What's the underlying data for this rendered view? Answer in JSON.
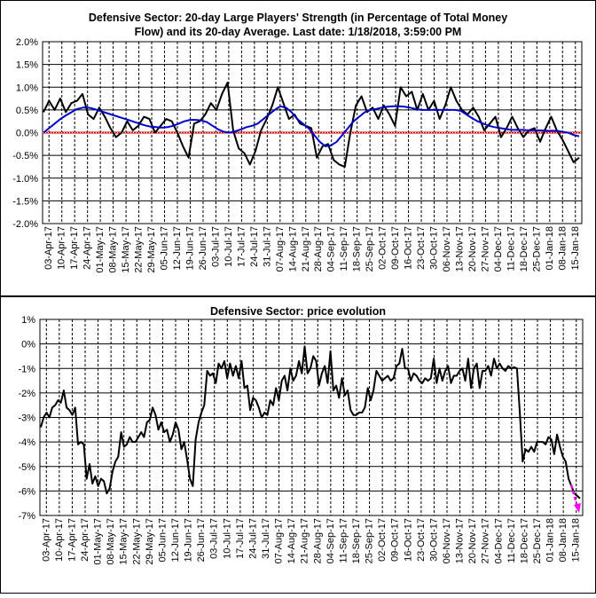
{
  "chart_data": [
    {
      "type": "line",
      "title": "Defensive Sector: 20-day Large Players' Strength (in Percentage of Total Money Flow) and its 20-day Average. Last date: 1/18/2018, 3:59:00 PM",
      "title_lines": [
        "Defensive Sector: 20-day Large Players' Strength (in Percentage of Total Money",
        "Flow) and its 20-day Average. Last date: 1/18/2018, 3:59:00 PM"
      ],
      "ylim": [
        -2.0,
        2.0
      ],
      "y_ticks": [
        "2.0%",
        "1.5%",
        "1.0%",
        "0.5%",
        "0.0%",
        "-0.5%",
        "-1.0%",
        "-1.5%",
        "-2.0%"
      ],
      "x_ticks": [
        "03-Apr-17",
        "10-Apr-17",
        "17-Apr-17",
        "24-Apr-17",
        "01-May-17",
        "08-May-17",
        "15-May-17",
        "22-May-17",
        "29-May-17",
        "05-Jun-17",
        "12-Jun-17",
        "19-Jun-17",
        "26-Jun-17",
        "03-Jul-17",
        "10-Jul-17",
        "17-Jul-17",
        "24-Jul-17",
        "31-Jul-17",
        "07-Aug-17",
        "14-Aug-17",
        "21-Aug-17",
        "28-Aug-17",
        "04-Sep-17",
        "11-Sep-17",
        "18-Sep-17",
        "25-Sep-17",
        "02-Oct-17",
        "09-Oct-17",
        "16-Oct-17",
        "23-Oct-17",
        "30-Oct-17",
        "06-Nov-17",
        "13-Nov-17",
        "20-Nov-17",
        "27-Nov-17",
        "04-Dec-17",
        "11-Dec-17",
        "18-Dec-17",
        "25-Dec-17",
        "01-Jan-18",
        "08-Jan-18",
        "15-Jan-18"
      ],
      "grid": true,
      "zero_line_color": "#cc0000",
      "series": [
        {
          "color": "#000000",
          "values": [
            0.45,
            0.7,
            0.5,
            0.75,
            0.45,
            0.65,
            0.7,
            0.85,
            0.4,
            0.3,
            0.55,
            0.35,
            0.1,
            -0.1,
            0.0,
            0.25,
            0.05,
            0.15,
            0.35,
            0.3,
            0.0,
            0.15,
            0.3,
            0.25,
            0.0,
            -0.3,
            -0.55,
            0.2,
            0.25,
            0.4,
            0.65,
            0.5,
            0.85,
            1.1,
            0.05,
            -0.35,
            -0.45,
            -0.7,
            -0.4,
            0.05,
            0.3,
            0.6,
            1.0,
            0.65,
            0.3,
            0.4,
            0.2,
            0.15,
            0.1,
            -0.55,
            -0.3,
            -0.25,
            -0.6,
            -0.7,
            -0.75,
            0.0,
            0.6,
            0.8,
            0.45,
            0.55,
            0.3,
            0.6,
            0.4,
            0.15,
            1.0,
            0.8,
            0.9,
            0.5,
            0.85,
            0.5,
            0.7,
            0.3,
            0.6,
            1.0,
            0.7,
            0.5,
            0.4,
            0.55,
            0.35,
            0.05,
            0.2,
            0.35,
            -0.1,
            0.1,
            0.35,
            0.1,
            -0.1,
            0.05,
            0.1,
            -0.2,
            0.1,
            0.35,
            0.05,
            -0.15,
            -0.4,
            -0.65,
            -0.55
          ]
        },
        {
          "color": "#0000cc",
          "values": [
            0.0,
            0.1,
            0.2,
            0.3,
            0.38,
            0.45,
            0.52,
            0.55,
            0.55,
            0.52,
            0.48,
            0.44,
            0.4,
            0.36,
            0.32,
            0.28,
            0.24,
            0.2,
            0.16,
            0.13,
            0.12,
            0.11,
            0.12,
            0.15,
            0.2,
            0.25,
            0.28,
            0.28,
            0.27,
            0.23,
            0.15,
            0.07,
            0.02,
            0.0,
            0.03,
            0.07,
            0.12,
            0.15,
            0.2,
            0.3,
            0.4,
            0.5,
            0.58,
            0.55,
            0.45,
            0.3,
            0.2,
            0.1,
            -0.05,
            -0.2,
            -0.3,
            -0.28,
            -0.2,
            -0.05,
            0.1,
            0.25,
            0.35,
            0.45,
            0.5,
            0.52,
            0.55,
            0.57,
            0.58,
            0.58,
            0.57,
            0.55,
            0.52,
            0.5,
            0.5,
            0.5,
            0.5,
            0.5,
            0.5,
            0.5,
            0.48,
            0.4,
            0.32,
            0.25,
            0.2,
            0.15,
            0.12,
            0.1,
            0.08,
            0.06,
            0.06,
            0.06,
            0.05,
            0.05,
            0.05,
            0.04,
            0.04,
            0.04,
            0.02,
            0.0,
            -0.05,
            -0.08
          ]
        }
      ]
    },
    {
      "type": "line",
      "title": "Defensive Sector: price evolution",
      "ylim": [
        -7,
        1
      ],
      "y_ticks": [
        "1%",
        "0%",
        "-1%",
        "-2%",
        "-3%",
        "-4%",
        "-5%",
        "-6%",
        "-7%"
      ],
      "x_ticks": [
        "03-Apr-17",
        "10-Apr-17",
        "17-Apr-17",
        "24-Apr-17",
        "01-May-17",
        "08-May-17",
        "15-May-17",
        "22-May-17",
        "29-May-17",
        "05-Jun-17",
        "12-Jun-17",
        "19-Jun-17",
        "26-Jun-17",
        "03-Jul-17",
        "10-Jul-17",
        "17-Jul-17",
        "24-Jul-17",
        "31-Jul-17",
        "07-Aug-17",
        "14-Aug-17",
        "21-Aug-17",
        "28-Aug-17",
        "04-Sep-17",
        "11-Sep-17",
        "18-Sep-17",
        "25-Sep-17",
        "02-Oct-17",
        "09-Oct-17",
        "16-Oct-17",
        "23-Oct-17",
        "30-Oct-17",
        "06-Nov-17",
        "13-Nov-17",
        "20-Nov-17",
        "27-Nov-17",
        "04-Dec-17",
        "11-Dec-17",
        "18-Dec-17",
        "25-Dec-17",
        "01-Jan-18",
        "08-Jan-18",
        "15-Jan-18"
      ],
      "grid": true,
      "arrow_color": "#ff00ff",
      "series": [
        {
          "color": "#000000",
          "values": [
            -3.4,
            -3.0,
            -2.8,
            -3.0,
            -2.6,
            -2.5,
            -2.3,
            -2.4,
            -1.9,
            -2.6,
            -2.7,
            -2.9,
            -2.6,
            -4.1,
            -4.0,
            -4.1,
            -5.5,
            -4.9,
            -5.7,
            -5.4,
            -5.8,
            -5.5,
            -5.6,
            -6.1,
            -5.9,
            -5.2,
            -4.8,
            -4.6,
            -3.6,
            -4.2,
            -4.1,
            -3.8,
            -4.0,
            -4.0,
            -3.8,
            -3.6,
            -3.8,
            -3.2,
            -3.1,
            -2.6,
            -2.9,
            -3.5,
            -3.2,
            -3.6,
            -3.5,
            -4.0,
            -3.7,
            -3.2,
            -3.5,
            -4.3,
            -4.0,
            -4.7,
            -5.5,
            -5.8,
            -3.9,
            -3.2,
            -2.8,
            -2.5,
            -1.1,
            -1.3,
            -1.2,
            -1.6,
            -0.8,
            -1.0,
            -0.7,
            -1.4,
            -0.8,
            -1.3,
            -0.9,
            -1.4,
            -0.7,
            -1.8,
            -1.7,
            -2.7,
            -2.2,
            -2.3,
            -2.6,
            -3.0,
            -2.8,
            -2.9,
            -2.3,
            -2.5,
            -1.8,
            -2.3,
            -1.5,
            -1.3,
            -1.9,
            -1.0,
            -1.5,
            -1.3,
            -0.7,
            -1.2,
            -0.1,
            -1.2,
            -1.0,
            -0.5,
            -0.7,
            -1.7,
            -1.2,
            -0.9,
            -1.6,
            -0.3,
            -1.9,
            -1.7,
            -2.2,
            -1.4,
            -2.1,
            -1.9,
            -2.7,
            -2.9,
            -2.9,
            -2.8,
            -2.8,
            -2.6,
            -1.8,
            -2.3,
            -1.9,
            -1.1,
            -1.3,
            -1.5,
            -1.4,
            -1.3,
            -1.5,
            -1.4,
            -0.9,
            -0.8,
            -0.2,
            -1.0,
            -1.0,
            -1.5,
            -1.2,
            -1.3,
            -1.5,
            -1.6,
            -1.4,
            -1.5,
            -1.4,
            -0.6,
            -1.6,
            -1.0,
            -1.5,
            -1.1,
            -0.9,
            -1.6,
            -1.3,
            -1.3,
            -1.1,
            -1.0,
            -1.5,
            -0.6,
            -1.8,
            -1.0,
            -0.8,
            -1.8,
            -1.1,
            -1.1,
            -0.9,
            -1.3,
            -0.6,
            -1.0,
            -0.8,
            -1.0,
            -1.1,
            -0.9,
            -1.0,
            -0.95,
            -1.0,
            -2.8,
            -4.8,
            -4.3,
            -4.4,
            -4.2,
            -4.4,
            -4.0,
            -4.0,
            -4.0,
            -4.1,
            -3.8,
            -3.9,
            -4.5,
            -3.7,
            -4.2,
            -4.6,
            -4.8,
            -5.5,
            -5.8,
            -6.1,
            -6.2,
            -6.3
          ]
        }
      ]
    }
  ]
}
